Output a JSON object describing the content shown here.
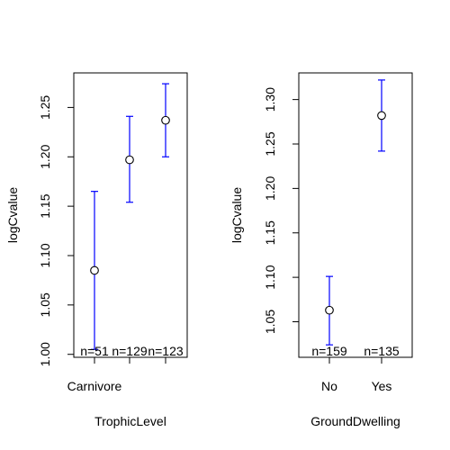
{
  "chart_data": [
    {
      "type": "scatter",
      "subtype": "means-with-error-bars",
      "xlabel": "TrophicLevel",
      "ylabel": "logCvalue",
      "categories": [
        "Carnivore",
        "",
        ""
      ],
      "mean": [
        1.085,
        1.197,
        1.237
      ],
      "upper": [
        1.165,
        1.241,
        1.274
      ],
      "lower": [
        1.005,
        1.154,
        1.2
      ],
      "n_labels": [
        "n=51",
        "n=129",
        "n=123"
      ],
      "yticks": [
        1.0,
        1.05,
        1.1,
        1.15,
        1.2,
        1.25
      ],
      "ytick_labels": [
        "1.00",
        "1.05",
        "1.10",
        "1.15",
        "1.20",
        "1.25"
      ],
      "ylim": [
        0.997,
        1.285
      ],
      "error_bar_color": "#0000ff",
      "grid": false
    },
    {
      "type": "scatter",
      "subtype": "means-with-error-bars",
      "xlabel": "GroundDwelling",
      "ylabel": "logCvalue",
      "categories": [
        "No",
        "Yes"
      ],
      "mean": [
        1.063,
        1.282
      ],
      "upper": [
        1.101,
        1.322
      ],
      "lower": [
        1.024,
        1.242
      ],
      "n_labels": [
        "n=159",
        "n=135"
      ],
      "yticks": [
        1.05,
        1.1,
        1.15,
        1.2,
        1.25,
        1.3
      ],
      "ytick_labels": [
        "1.05",
        "1.10",
        "1.15",
        "1.20",
        "1.25",
        "1.30"
      ],
      "ylim": [
        1.01,
        1.33
      ],
      "error_bar_color": "#0000ff",
      "grid": false
    }
  ]
}
